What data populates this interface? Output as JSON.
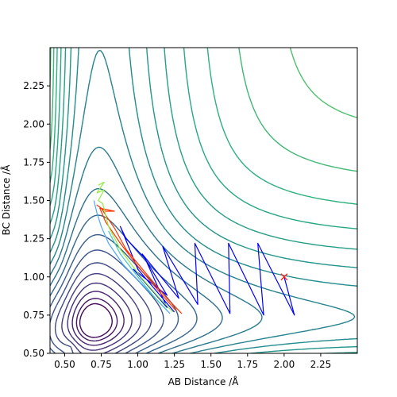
{
  "chart_data": {
    "type": "contour",
    "xlabel": "AB Distance /Å",
    "ylabel": "BC Distance /Å",
    "xlim": [
      0.4,
      2.5
    ],
    "ylim": [
      0.5,
      2.5
    ],
    "xticks": [
      "0.50",
      "0.75",
      "1.00",
      "1.25",
      "1.50",
      "1.75",
      "2.00",
      "2.25"
    ],
    "xtick_values": [
      0.5,
      0.75,
      1.0,
      1.25,
      1.5,
      1.75,
      2.0,
      2.25
    ],
    "yticks": [
      "0.50",
      "0.75",
      "1.00",
      "1.25",
      "1.50",
      "1.75",
      "2.00",
      "2.25"
    ],
    "ytick_values": [
      0.5,
      0.75,
      1.0,
      1.25,
      1.5,
      1.75,
      2.0,
      2.25
    ],
    "colormap": "viridis",
    "grid": false,
    "contour_levels": 26,
    "potential": {
      "D": 4.7,
      "a": 1.94,
      "re": 0.74
    },
    "marker": {
      "x": 2.0,
      "y": 1.0,
      "symbol": "x",
      "color": "#ff2020"
    },
    "trajectories": [
      {
        "color": "#0000ff",
        "points": [
          [
            2.0,
            1.0
          ],
          [
            2.07,
            0.75
          ],
          [
            1.82,
            1.22
          ],
          [
            1.86,
            0.75
          ],
          [
            1.62,
            1.22
          ],
          [
            1.63,
            0.76
          ],
          [
            1.39,
            1.22
          ],
          [
            1.41,
            0.82
          ],
          [
            1.17,
            1.2
          ],
          [
            1.28,
            0.86
          ],
          [
            1.03,
            1.15
          ],
          [
            1.2,
            0.88
          ],
          [
            0.97,
            1.05
          ],
          [
            1.2,
            0.8
          ],
          [
            1.05,
            1.12
          ],
          [
            0.92,
            1.25
          ],
          [
            0.88,
            1.33
          ],
          [
            1.0,
            1.05
          ],
          [
            1.25,
            0.77
          ]
        ]
      },
      {
        "color": "#ff3300",
        "points": [
          [
            1.3,
            0.76
          ],
          [
            1.2,
            0.86
          ],
          [
            1.05,
            1.03
          ],
          [
            0.92,
            1.18
          ],
          [
            0.84,
            1.32
          ],
          [
            0.79,
            1.39
          ],
          [
            0.75,
            1.45
          ],
          [
            0.72,
            1.47
          ],
          [
            0.78,
            1.43
          ],
          [
            0.84,
            1.43
          ],
          [
            0.74,
            1.45
          ],
          [
            0.78,
            1.36
          ],
          [
            0.88,
            1.22
          ],
          [
            1.0,
            1.07
          ],
          [
            1.14,
            0.91
          ],
          [
            1.26,
            0.78
          ]
        ]
      },
      {
        "color": "#90ee40",
        "points": [
          [
            0.73,
            1.6
          ],
          [
            0.77,
            1.62
          ],
          [
            0.72,
            1.55
          ],
          [
            0.77,
            1.57
          ],
          [
            0.73,
            1.5
          ],
          [
            0.76,
            1.48
          ],
          [
            0.8,
            1.33
          ],
          [
            0.88,
            1.18
          ],
          [
            1.02,
            1.0
          ],
          [
            1.15,
            0.86
          ],
          [
            1.24,
            0.77
          ]
        ]
      },
      {
        "color": "#4aa8ff",
        "points": [
          [
            0.7,
            1.5
          ],
          [
            0.72,
            1.42
          ],
          [
            0.75,
            1.33
          ],
          [
            0.8,
            1.22
          ],
          [
            0.9,
            1.08
          ],
          [
            1.02,
            0.96
          ],
          [
            1.14,
            0.84
          ],
          [
            1.22,
            0.76
          ]
        ]
      },
      {
        "color": "#40c8c0",
        "points": [
          [
            0.8,
            1.3
          ],
          [
            0.88,
            1.15
          ],
          [
            1.0,
            1.0
          ],
          [
            1.12,
            0.86
          ],
          [
            1.2,
            0.78
          ]
        ]
      }
    ]
  }
}
